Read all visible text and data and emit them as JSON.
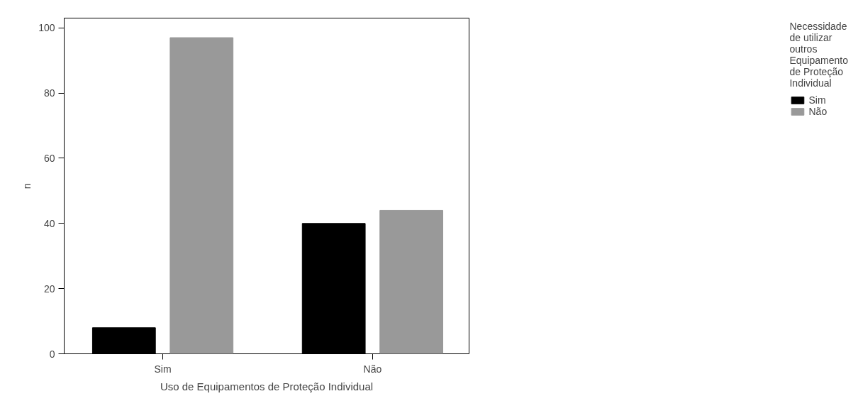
{
  "chart_data": {
    "type": "bar",
    "xlabel": "Uso de Equipamentos de Proteção Individual",
    "ylabel": "n",
    "legend_title": "Necessidade de utilizar outros Equipamento de Proteção Individual",
    "categories": [
      "Sim",
      "Não"
    ],
    "series": [
      {
        "name": "Sim",
        "color": "#000000",
        "values": [
          8,
          40
        ]
      },
      {
        "name": "Não",
        "color": "#999999",
        "values": [
          97,
          44
        ]
      }
    ],
    "ylim": [
      0,
      103
    ],
    "yticks": [
      0,
      20,
      40,
      60,
      80,
      100
    ],
    "grid": false,
    "legend": "right"
  }
}
